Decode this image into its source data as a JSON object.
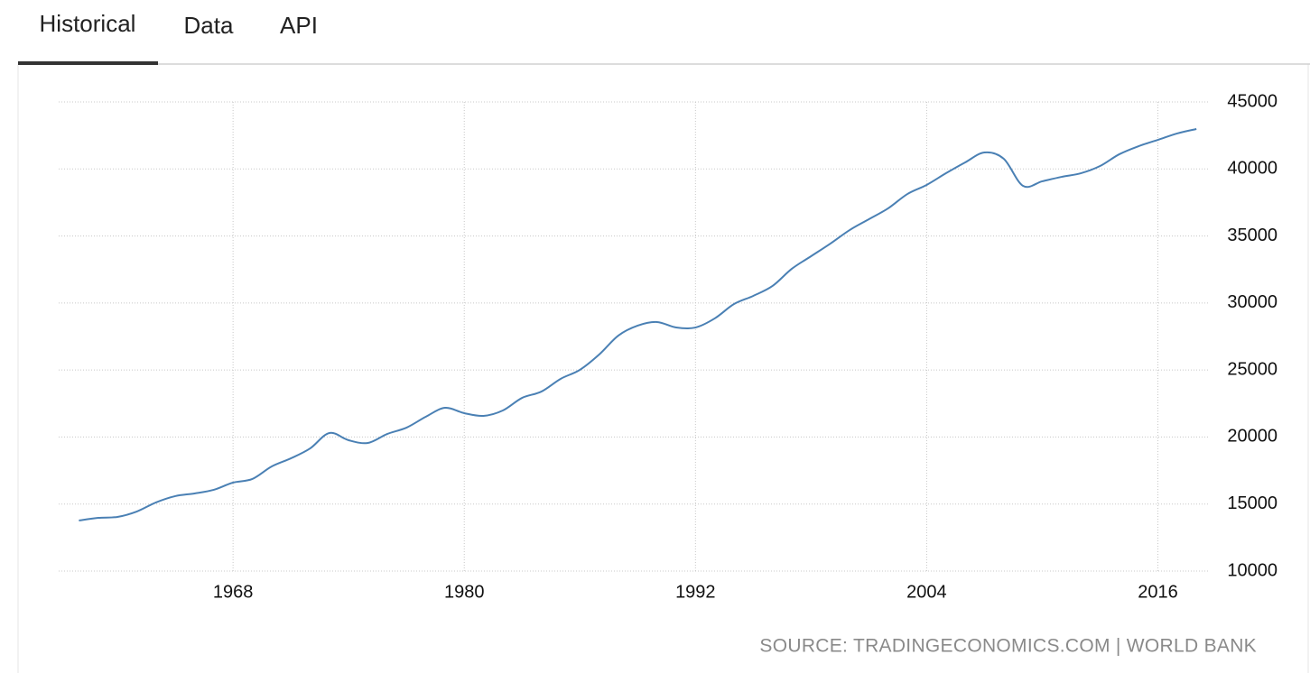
{
  "tabs": [
    "Historical",
    "Data",
    "API"
  ],
  "source": "SOURCE: TRADINGECONOMICS.COM | WORLD BANK",
  "chart_data": {
    "type": "line",
    "color": "#4a80b4",
    "grid": true,
    "x": [
      1960,
      1961,
      1962,
      1963,
      1964,
      1965,
      1966,
      1967,
      1968,
      1969,
      1970,
      1971,
      1972,
      1973,
      1974,
      1975,
      1976,
      1977,
      1978,
      1979,
      1980,
      1981,
      1982,
      1983,
      1984,
      1985,
      1986,
      1987,
      1988,
      1989,
      1990,
      1991,
      1992,
      1993,
      1994,
      1995,
      1996,
      1997,
      1998,
      1999,
      2000,
      2001,
      2002,
      2003,
      2004,
      2005,
      2006,
      2007,
      2008,
      2009,
      2010,
      2011,
      2012,
      2013,
      2014,
      2015,
      2016,
      2017,
      2018
    ],
    "values": [
      13770,
      13970,
      14040,
      14440,
      15120,
      15590,
      15790,
      16060,
      16600,
      16870,
      17800,
      18410,
      19150,
      20300,
      19760,
      19560,
      20230,
      20700,
      21510,
      22180,
      21780,
      21580,
      21980,
      22920,
      23390,
      24340,
      25010,
      26150,
      27570,
      28310,
      28580,
      28170,
      28170,
      28850,
      29920,
      30530,
      31270,
      32550,
      33490,
      34430,
      35440,
      36250,
      37060,
      38130,
      38810,
      39680,
      40490,
      41230,
      40760,
      38740,
      39080,
      39410,
      39680,
      40220,
      41100,
      41700,
      42170,
      42650,
      42980
    ],
    "xlim": [
      1958.95,
      2018.6
    ],
    "xticks": [
      1968,
      1980,
      1992,
      2004,
      2016
    ],
    "ylim": [
      10000,
      45000
    ],
    "yticks": [
      10000,
      15000,
      20000,
      25000,
      30000,
      35000,
      40000,
      45000
    ]
  }
}
